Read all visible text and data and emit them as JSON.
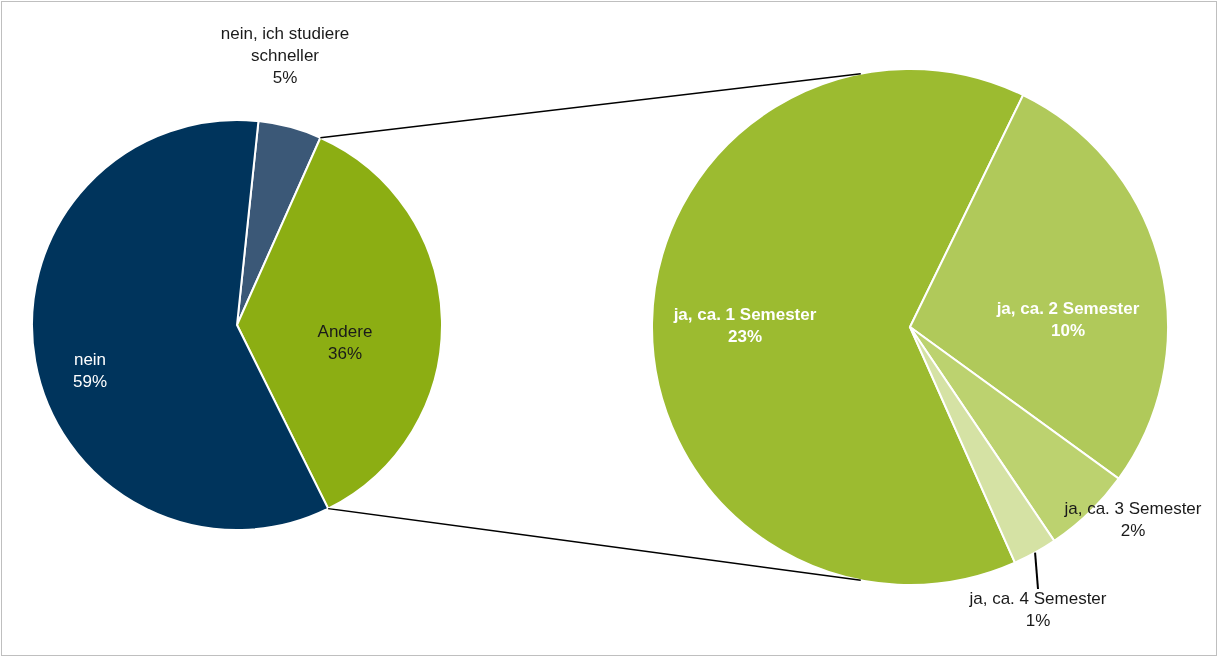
{
  "chart_data": [
    {
      "type": "pie",
      "categories": [
        "nein, ich studiere schneller",
        "Andere",
        "nein"
      ],
      "values": [
        5,
        36,
        59
      ],
      "colors": [
        "#3b5877",
        "#8cae13",
        "#00345c"
      ],
      "value_labels": [
        "5%",
        "36%",
        "59%"
      ]
    },
    {
      "type": "pie",
      "categories": [
        "ja, ca. 1 Semester",
        "ja, ca. 2 Semester",
        "ja, ca. 3 Semester",
        "ja, ca. 4 Semester"
      ],
      "values": [
        23,
        10,
        2,
        1
      ],
      "colors": [
        "#9cbb30",
        "#b0c95a",
        "#bcd26f",
        "#d5e2a4"
      ],
      "value_labels": [
        "23%",
        "10%",
        "2%",
        "1%"
      ]
    }
  ]
}
